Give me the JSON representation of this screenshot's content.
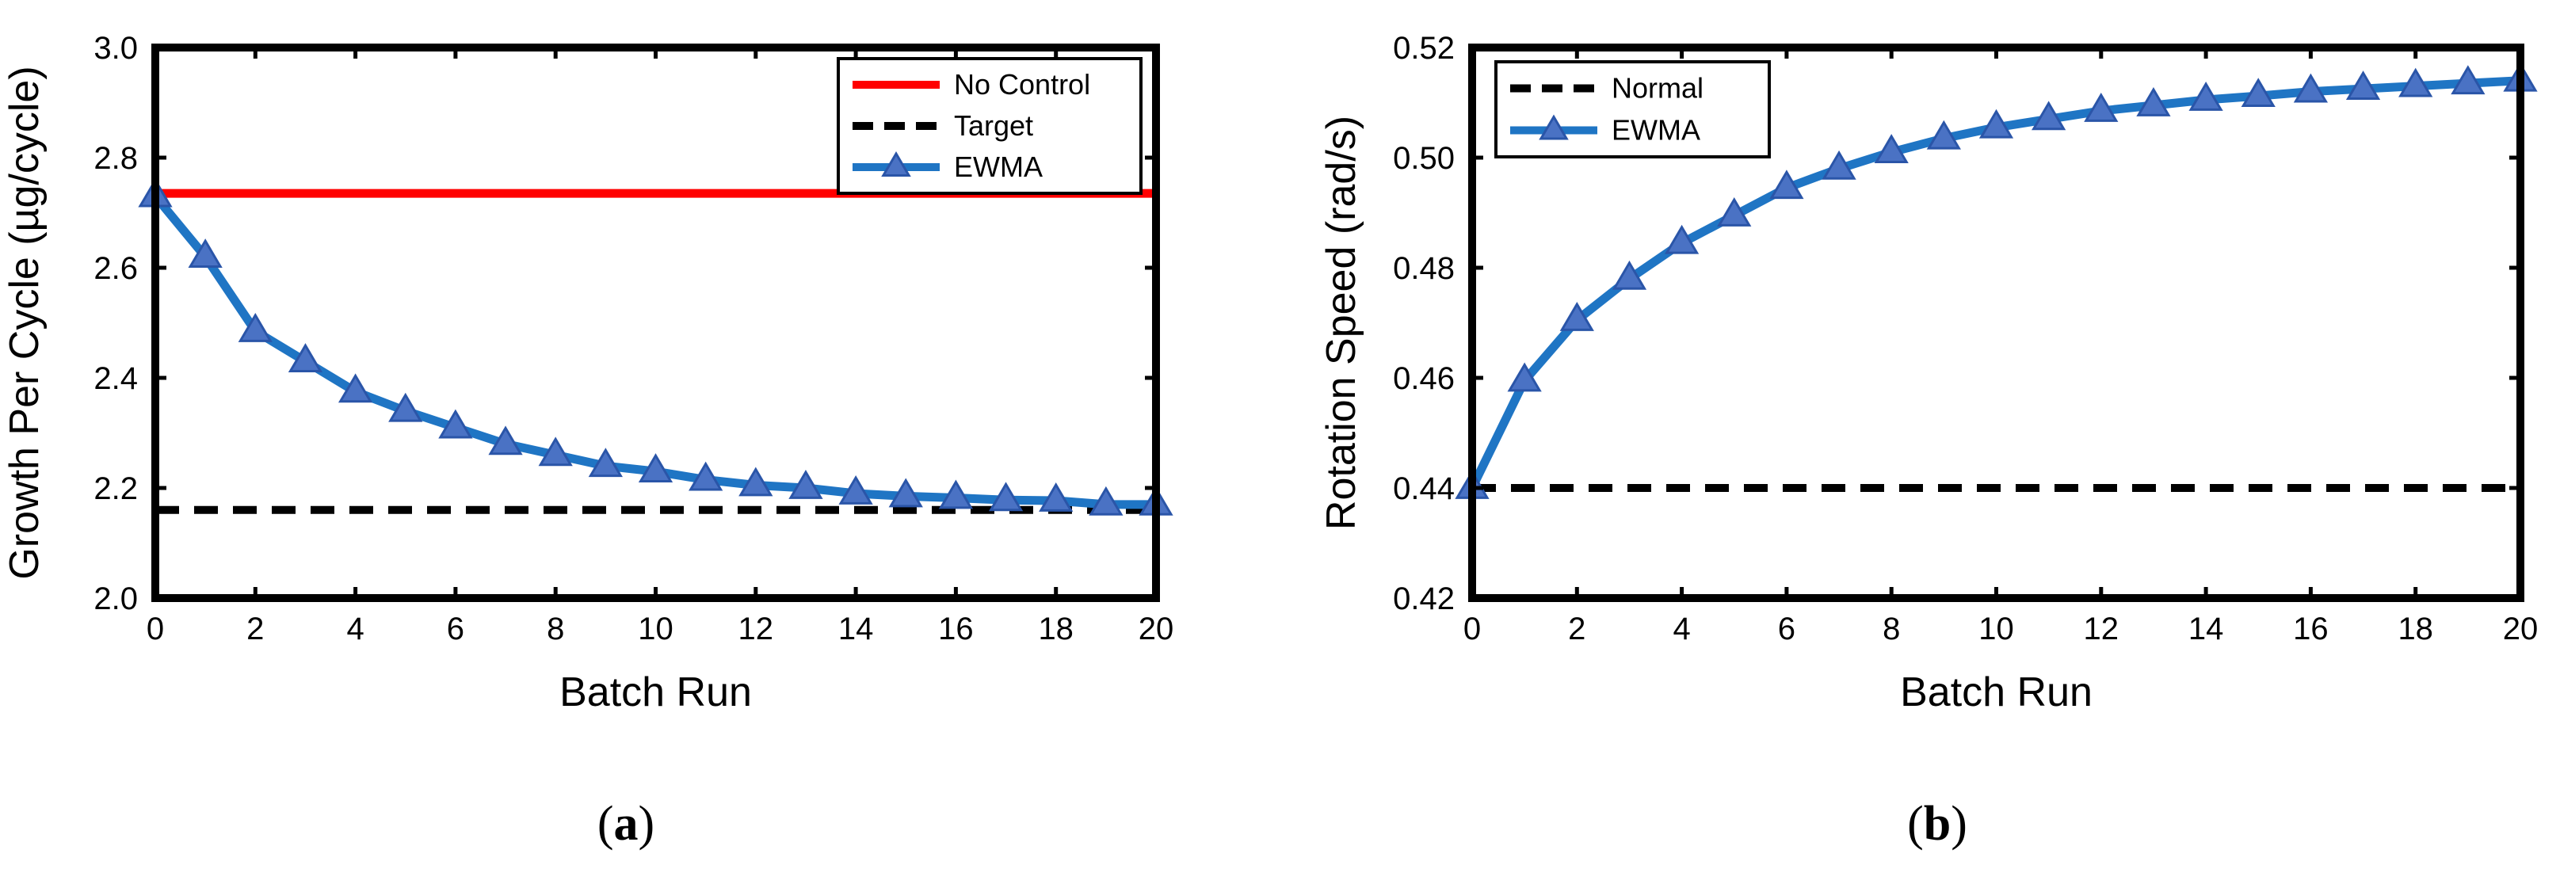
{
  "colors": {
    "no_control": "#ff0000",
    "target": "#000000",
    "ewma_line": "#1f75c4",
    "ewma_marker": "#4a72c4",
    "axes": "#000000"
  },
  "chart_data": [
    {
      "type": "line",
      "caption_letter": "a",
      "xlabel": "Batch Run",
      "ylabel": "Growth Per Cycle (µg/cycle)",
      "xlim": [
        0,
        20
      ],
      "ylim": [
        2.0,
        3.0
      ],
      "xticks": [
        "0",
        "2",
        "4",
        "6",
        "8",
        "10",
        "12",
        "14",
        "16",
        "18",
        "20"
      ],
      "yticks": [
        "2.0",
        "2.2",
        "2.4",
        "2.6",
        "2.8",
        "3.0"
      ],
      "legend_position": "top-right",
      "series": [
        {
          "name": "No Control",
          "style": "solid",
          "marker": "none",
          "x": [
            0,
            20
          ],
          "y": [
            2.735,
            2.735
          ]
        },
        {
          "name": "Target",
          "style": "dashed",
          "marker": "none",
          "x": [
            0,
            20
          ],
          "y": [
            2.16,
            2.16
          ]
        },
        {
          "name": "EWMA",
          "style": "solid",
          "marker": "triangle",
          "x": [
            0,
            1,
            2,
            3,
            4,
            5,
            6,
            7,
            8,
            9,
            10,
            11,
            12,
            13,
            14,
            15,
            16,
            17,
            18,
            19,
            20
          ],
          "y": [
            2.73,
            2.62,
            2.485,
            2.43,
            2.375,
            2.34,
            2.31,
            2.28,
            2.26,
            2.24,
            2.23,
            2.215,
            2.205,
            2.2,
            2.19,
            2.185,
            2.182,
            2.178,
            2.177,
            2.17,
            2.17
          ]
        }
      ]
    },
    {
      "type": "line",
      "caption_letter": "b",
      "xlabel": "Batch Run",
      "ylabel": "Rotation Speed (rad/s)",
      "xlim": [
        0,
        20
      ],
      "ylim": [
        0.42,
        0.52
      ],
      "xticks": [
        "0",
        "2",
        "4",
        "6",
        "8",
        "10",
        "12",
        "14",
        "16",
        "18",
        "20"
      ],
      "yticks": [
        "0.42",
        "0.44",
        "0.46",
        "0.48",
        "0.50",
        "0.52"
      ],
      "legend_position": "top-left",
      "series": [
        {
          "name": "Normal",
          "style": "dashed",
          "marker": "none",
          "x": [
            0,
            20
          ],
          "y": [
            0.44,
            0.44
          ]
        },
        {
          "name": "EWMA",
          "style": "solid",
          "marker": "triangle",
          "x": [
            0,
            1,
            2,
            3,
            4,
            5,
            6,
            7,
            8,
            9,
            10,
            11,
            12,
            13,
            14,
            15,
            16,
            17,
            18,
            19,
            20
          ],
          "y": [
            0.44,
            0.4595,
            0.4705,
            0.478,
            0.4845,
            0.4895,
            0.4945,
            0.498,
            0.501,
            0.5035,
            0.5055,
            0.507,
            0.5085,
            0.5095,
            0.5105,
            0.5112,
            0.512,
            0.5125,
            0.513,
            0.5135,
            0.514
          ]
        }
      ]
    }
  ]
}
